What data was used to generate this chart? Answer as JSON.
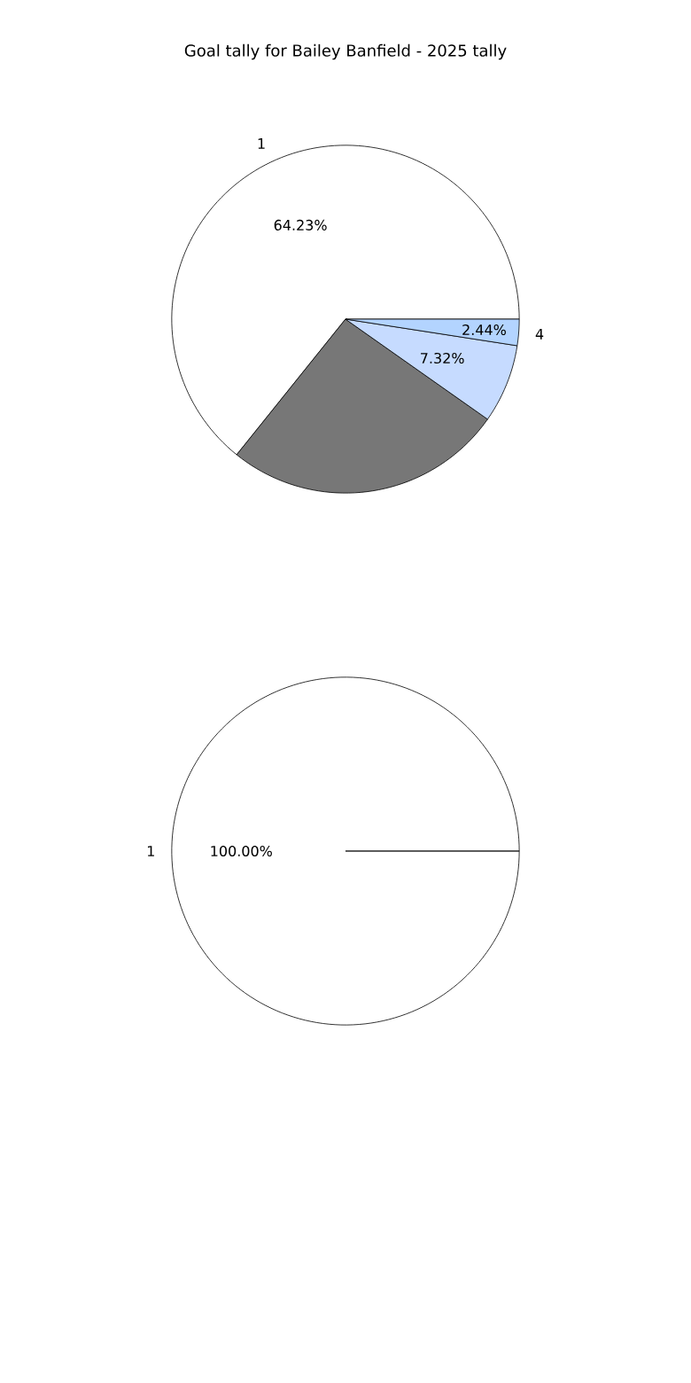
{
  "chart_data": [
    {
      "type": "pie",
      "title": "Goal tally for Bailey Banfield - 2025 tally",
      "categories": [
        "1",
        null,
        null,
        "4"
      ],
      "values": [
        64.23,
        26.01,
        7.32,
        2.44
      ],
      "colors": [
        "#ffffff",
        "#777777",
        "#c6dbff",
        "#b3d4ff"
      ],
      "value_labels": [
        "64.23%",
        null,
        "7.32%",
        "2.44%"
      ]
    },
    {
      "type": "pie",
      "categories": [
        "1"
      ],
      "values": [
        100
      ],
      "colors": [
        "#ffffff"
      ],
      "value_labels": [
        "100.00%"
      ]
    }
  ]
}
